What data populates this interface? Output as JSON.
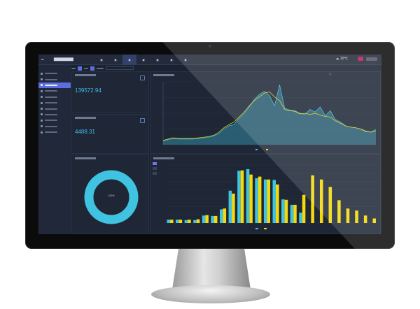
{
  "kpi": {
    "value1": "139572.94",
    "value2": "4488.31"
  },
  "weather": {
    "temp": "10℃"
  },
  "donut": {
    "percent_label": "100%",
    "value": 100,
    "color": "#3fc3e0"
  },
  "colors": {
    "today": "#3fc3e0",
    "compare": "#f5d90a",
    "accent": "#5b6de0",
    "background": "#1b2230"
  },
  "sidebar": {
    "icons": [
      "home-icon",
      "chart-icon",
      "monitor-icon",
      "grid-icon",
      "list-icon",
      "car-icon",
      "calendar-icon",
      "gear-icon",
      "box-icon",
      "doc-icon",
      "file-icon"
    ],
    "active_index": 2
  },
  "nav": {
    "icons": [
      "dashboard-icon",
      "tools-icon",
      "monitor-icon",
      "report-icon",
      "user-icon",
      "close-icon",
      "settings-icon"
    ],
    "active_index": 2
  },
  "chart_data": [
    {
      "type": "area",
      "series": [
        {
          "color": "#3fc3e0",
          "values": [
            6,
            8,
            10,
            9,
            9,
            9,
            9,
            10,
            11,
            12,
            14,
            18,
            25,
            30,
            32,
            42,
            50,
            60,
            72,
            80,
            85,
            78,
            62,
            95,
            58,
            55,
            54,
            50,
            48,
            56,
            52,
            60,
            46,
            54,
            40,
            36,
            30,
            28,
            27,
            25,
            22,
            20,
            24
          ]
        },
        {
          "color": "#f5d90a",
          "values": [
            7,
            9,
            11,
            10,
            10,
            10,
            10,
            11,
            12,
            13,
            15,
            20,
            27,
            32,
            36,
            44,
            52,
            62,
            70,
            76,
            82,
            84,
            76,
            70,
            56,
            54,
            53,
            49,
            50,
            48,
            50,
            47,
            45,
            44,
            38,
            34,
            30,
            28,
            27,
            25,
            21,
            20,
            22
          ]
        }
      ]
    },
    {
      "type": "bar",
      "categories_count": 24,
      "series": [
        {
          "color": "#3fc3e0",
          "values": [
            0.4,
            0.4,
            0.35,
            0.35,
            0.9,
            0.85,
            1.65,
            3.9,
            6.3,
            6.5,
            5.4,
            5.25,
            5.2,
            2.85,
            2.2,
            1.25,
            null,
            null,
            null,
            null,
            null,
            null,
            null,
            null
          ]
        },
        {
          "color": "#f5d90a",
          "values": [
            0.4,
            0.4,
            0.4,
            0.45,
            0.95,
            0.85,
            1.75,
            3.55,
            6.35,
            5.85,
            5.6,
            5.25,
            4.65,
            2.8,
            2.2,
            3.4,
            5.75,
            5.25,
            4.35,
            2.75,
            1.75,
            1.5,
            0.9,
            0.55
          ]
        }
      ],
      "ylim": [
        0,
        7
      ],
      "grid": true,
      "legend": "bottom"
    }
  ]
}
